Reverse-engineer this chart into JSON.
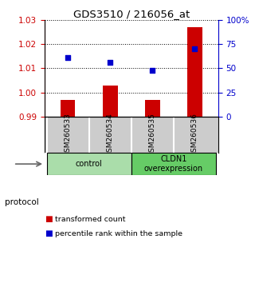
{
  "title": "GDS3510 / 216056_at",
  "samples": [
    "GSM260533",
    "GSM260534",
    "GSM260535",
    "GSM260536"
  ],
  "transformed_count": [
    0.997,
    1.003,
    0.997,
    1.027
  ],
  "percentile_rank": [
    61,
    56,
    48,
    70
  ],
  "ylim_left": [
    0.99,
    1.03
  ],
  "ylim_right": [
    0,
    100
  ],
  "yticks_left": [
    0.99,
    1.0,
    1.01,
    1.02,
    1.03
  ],
  "yticks_right": [
    0,
    25,
    50,
    75,
    100
  ],
  "ytick_labels_right": [
    "0",
    "25",
    "50",
    "75",
    "100%"
  ],
  "bar_color": "#cc0000",
  "scatter_color": "#0000cc",
  "groups": [
    {
      "label": "control",
      "samples": [
        0,
        1
      ],
      "color": "#aaddaa"
    },
    {
      "label": "CLDN1\noverexpression",
      "samples": [
        2,
        3
      ],
      "color": "#66cc66"
    }
  ],
  "protocol_label": "protocol",
  "legend_bar_label": "transformed count",
  "legend_scatter_label": "percentile rank within the sample",
  "grid_color": "#000000",
  "background_color": "#ffffff",
  "sample_box_color": "#cccccc",
  "bar_width": 0.35
}
